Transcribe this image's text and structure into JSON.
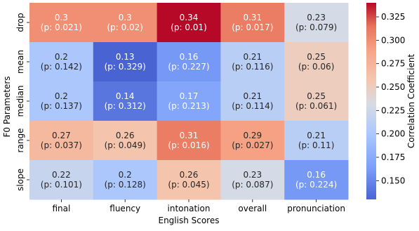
{
  "chart_data": {
    "type": "heatmap",
    "title": "",
    "xlabel": "English Scores",
    "ylabel": "F0 Parameters",
    "colorbar_label": "Correlation Coefficient",
    "x_categories": [
      "final",
      "fluency",
      "intonation",
      "overall",
      "pronunciation"
    ],
    "y_categories": [
      "drop",
      "mean",
      "median",
      "range",
      "slope"
    ],
    "values": [
      [
        0.3,
        0.3,
        0.34,
        0.31,
        0.23
      ],
      [
        0.2,
        0.13,
        0.16,
        0.21,
        0.25
      ],
      [
        0.2,
        0.14,
        0.17,
        0.21,
        0.25
      ],
      [
        0.27,
        0.26,
        0.31,
        0.29,
        0.21
      ],
      [
        0.22,
        0.2,
        0.26,
        0.23,
        0.16
      ]
    ],
    "display_values": [
      [
        "0.3",
        "0.3",
        "0.34",
        "0.31",
        "0.23"
      ],
      [
        "0.2",
        "0.13",
        "0.16",
        "0.21",
        "0.25"
      ],
      [
        "0.2",
        "0.14",
        "0.17",
        "0.21",
        "0.25"
      ],
      [
        "0.27",
        "0.26",
        "0.31",
        "0.29",
        "0.21"
      ],
      [
        "0.22",
        "0.2",
        "0.26",
        "0.23",
        "0.16"
      ]
    ],
    "p_values": [
      [
        "(p: 0.021)",
        "(p: 0.02)",
        "(p: 0.01)",
        "(p: 0.017)",
        "(p: 0.079)"
      ],
      [
        "(p: 0.142)",
        "(p: 0.329)",
        "(p: 0.227)",
        "(p: 0.116)",
        "(p: 0.06)"
      ],
      [
        "(p: 0.137)",
        "(p: 0.312)",
        "(p: 0.213)",
        "(p: 0.114)",
        "(p: 0.061)"
      ],
      [
        "(p: 0.037)",
        "(p: 0.049)",
        "(p: 0.016)",
        "(p: 0.027)",
        "(p: 0.11)"
      ],
      [
        "(p: 0.101)",
        "(p: 0.128)",
        "(p: 0.045)",
        "(p: 0.087)",
        "(p: 0.224)"
      ]
    ],
    "colorbar_range": [
      0.13,
      0.34
    ],
    "colorbar_ticks": [
      "0.150",
      "0.175",
      "0.200",
      "0.225",
      "0.250",
      "0.275",
      "0.300",
      "0.325"
    ],
    "colormap": "coolwarm"
  }
}
